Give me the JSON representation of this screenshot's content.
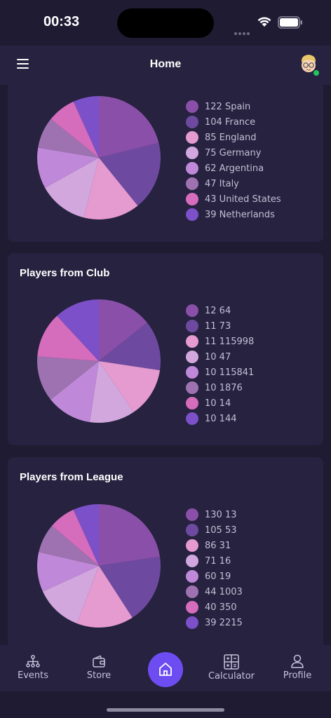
{
  "status_bar": {
    "time": "00:33"
  },
  "header": {
    "title": "Home"
  },
  "colors": {
    "palette": [
      "#8a4fa8",
      "#6d4aa0",
      "#e59ad0",
      "#d2a7dd",
      "#c088d8",
      "#9e72b0",
      "#d56cbc",
      "#7c50c8"
    ],
    "accent": "#6d4df2",
    "online": "#22c55e"
  },
  "cards": [
    {
      "title": "",
      "legend": [
        "122 Spain",
        "104 France",
        "85 England",
        "75 Germany",
        "62 Argentina",
        "47 Italy",
        "43 United States",
        "39 Netherlands"
      ]
    },
    {
      "title": "Players from Club",
      "legend": [
        "12 64",
        "11 73",
        "11 115998",
        "10 47",
        "10 115841",
        "10 1876",
        "10 14",
        "10 144"
      ]
    },
    {
      "title": "Players from League",
      "legend": [
        "130 13",
        "105 53",
        "86 31",
        "71 16",
        "60 19",
        "44 1003",
        "40 350",
        "39 2215"
      ]
    }
  ],
  "chart_data": [
    {
      "type": "pie",
      "categories": [
        "Spain",
        "France",
        "England",
        "Germany",
        "Argentina",
        "Italy",
        "United States",
        "Netherlands"
      ],
      "values": [
        122,
        104,
        85,
        75,
        62,
        47,
        43,
        39
      ]
    },
    {
      "type": "pie",
      "title": "Players from Club",
      "categories": [
        "64",
        "73",
        "115998",
        "47",
        "115841",
        "1876",
        "14",
        "144"
      ],
      "values": [
        12,
        11,
        11,
        10,
        10,
        10,
        10,
        10
      ]
    },
    {
      "type": "pie",
      "title": "Players from League",
      "categories": [
        "13",
        "53",
        "31",
        "16",
        "19",
        "1003",
        "350",
        "2215"
      ],
      "values": [
        130,
        105,
        86,
        71,
        60,
        44,
        40,
        39
      ]
    }
  ],
  "bottom_nav": {
    "events": "Events",
    "store": "Store",
    "calculator": "Calculator",
    "profile": "Profile"
  },
  "icons": {
    "menu": "hamburger-menu-icon",
    "events": "org-chart-icon",
    "store": "wallet-icon",
    "home": "home-icon",
    "calculator": "calculator-icon",
    "profile": "person-icon"
  }
}
